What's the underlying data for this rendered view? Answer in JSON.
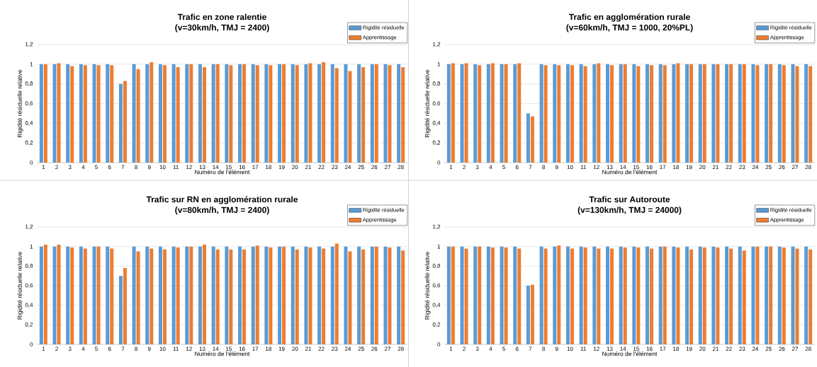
{
  "chart_data": [
    {
      "type": "bar",
      "title": "Trafic en zone ralentie",
      "subtitle": "(v=30km/h, TMJ = 2400)",
      "xlabel": "Numéro de l'élément",
      "ylabel": "Rigidité résiduelle relative",
      "categories": [
        "1",
        "2",
        "3",
        "4",
        "5",
        "6",
        "7",
        "8",
        "9",
        "10",
        "11",
        "12",
        "13",
        "14",
        "15",
        "16",
        "17",
        "18",
        "19",
        "20",
        "21",
        "22",
        "23",
        "24",
        "25",
        "26",
        "27",
        "28"
      ],
      "series": [
        {
          "name": "Rigidité résiduelle",
          "color": "#5b9bd5",
          "values": [
            1,
            1,
            1,
            1,
            1,
            1,
            0.8,
            1,
            1,
            1,
            1,
            1,
            1,
            1,
            1,
            1,
            1,
            1,
            1,
            1,
            1,
            1,
            1,
            1,
            1,
            1,
            1,
            1
          ]
        },
        {
          "name": "Apprentissage",
          "color": "#ed7d31",
          "values": [
            1,
            1.01,
            0.98,
            0.99,
            0.99,
            0.99,
            0.83,
            0.95,
            1.02,
            0.99,
            0.97,
            1,
            0.97,
            1,
            0.99,
            1,
            0.99,
            0.99,
            1,
            0.99,
            1.01,
            1.02,
            0.96,
            0.93,
            0.97,
            1,
            0.99,
            0.97
          ]
        }
      ],
      "ylim": [
        0,
        1.2
      ],
      "yticks": [
        0,
        {
          "value": 0.2,
          "label": "0,2"
        },
        {
          "value": 0.4,
          "label": "0,4"
        },
        {
          "value": 0.6,
          "label": "0,6"
        },
        {
          "value": 0.8,
          "label": "0,8"
        },
        1,
        {
          "value": 1.2,
          "label": "1,2"
        }
      ],
      "grid": "y",
      "legend": "top right"
    },
    {
      "type": "bar",
      "title": "Trafic en agglomération rurale",
      "subtitle": "(v=60km/h, TMJ = 1000, 20%PL)",
      "xlabel": "Numéro de l'élément",
      "ylabel": "Rigidité résiduelle relative",
      "categories": [
        "1",
        "2",
        "3",
        "4",
        "5",
        "6",
        "7",
        "8",
        "9",
        "10",
        "11",
        "12",
        "13",
        "14",
        "15",
        "16",
        "17",
        "18",
        "19",
        "20",
        "21",
        "22",
        "23",
        "24",
        "25",
        "26",
        "27",
        "28"
      ],
      "series": [
        {
          "name": "Rigidité résiduelle",
          "color": "#5b9bd5",
          "values": [
            1,
            1,
            1,
            1,
            1,
            1,
            0.5,
            1,
            1,
            1,
            1,
            1,
            1,
            1,
            1,
            1,
            1,
            1,
            1,
            1,
            1,
            1,
            1,
            1,
            1,
            1,
            1,
            1
          ]
        },
        {
          "name": "Apprentissage",
          "color": "#ed7d31",
          "values": [
            1.01,
            1.01,
            0.99,
            1.01,
            1,
            1.01,
            0.47,
            0.99,
            0.99,
            0.99,
            0.98,
            1.01,
            0.99,
            1,
            0.98,
            0.99,
            0.99,
            1.01,
            1,
            1,
            1,
            1,
            1,
            0.99,
            1,
            0.99,
            0.98,
            0.98
          ]
        }
      ],
      "ylim": [
        0,
        1.2
      ],
      "yticks": [
        0,
        {
          "value": 0.2,
          "label": "0,2"
        },
        {
          "value": 0.4,
          "label": "0,4"
        },
        {
          "value": 0.6,
          "label": "0,6"
        },
        {
          "value": 0.8,
          "label": "0,8"
        },
        1,
        {
          "value": 1.2,
          "label": "1,2"
        }
      ],
      "grid": "y",
      "legend": "top right"
    },
    {
      "type": "bar",
      "title": "Trafic sur RN en agglomération rurale",
      "subtitle": "(v=80km/h, TMJ = 2400)",
      "xlabel": "Numéro de l'élément",
      "ylabel": "Rigidité résiduelle relative",
      "categories": [
        "1",
        "2",
        "3",
        "4",
        "5",
        "6",
        "7",
        "8",
        "9",
        "10",
        "11",
        "12",
        "13",
        "14",
        "15",
        "16",
        "17",
        "18",
        "19",
        "20",
        "21",
        "22",
        "23",
        "24",
        "25",
        "26",
        "27",
        "28"
      ],
      "series": [
        {
          "name": "Rigidité résiduelle",
          "color": "#5b9bd5",
          "values": [
            1,
            1,
            1,
            1,
            1,
            1,
            0.7,
            1,
            1,
            1,
            1,
            1,
            1,
            1,
            1,
            1,
            1,
            1,
            1,
            1,
            1,
            1,
            1,
            1,
            1,
            1,
            1,
            1
          ]
        },
        {
          "name": "Apprentissage",
          "color": "#ed7d31",
          "values": [
            1.02,
            1.02,
            0.99,
            0.98,
            1,
            0.98,
            0.78,
            0.95,
            0.98,
            0.97,
            0.99,
            1,
            1.02,
            0.97,
            0.97,
            0.97,
            1.01,
            0.99,
            1,
            0.97,
            0.99,
            0.98,
            1.03,
            0.95,
            0.97,
            1,
            0.99,
            0.96
          ]
        }
      ],
      "ylim": [
        0,
        1.2
      ],
      "yticks": [
        0,
        {
          "value": 0.2,
          "label": "0,2"
        },
        {
          "value": 0.4,
          "label": "0,4"
        },
        {
          "value": 0.6,
          "label": "0,6"
        },
        {
          "value": 0.8,
          "label": "0,8"
        },
        1,
        {
          "value": 1.2,
          "label": "1,2"
        }
      ],
      "grid": "y",
      "legend": "top right"
    },
    {
      "type": "bar",
      "title": "Trafic sur Autoroute",
      "subtitle": "(v=130km/h, TMJ = 24000)",
      "xlabel": "Numéro de l'élément",
      "ylabel": "Rigidité résiduelle relative",
      "categories": [
        "1",
        "2",
        "3",
        "4",
        "5",
        "6",
        "7",
        "8",
        "9",
        "10",
        "11",
        "12",
        "13",
        "14",
        "15",
        "16",
        "17",
        "18",
        "19",
        "20",
        "21",
        "22",
        "23",
        "24",
        "25",
        "26",
        "27",
        "28"
      ],
      "series": [
        {
          "name": "Rigidité résiduelle",
          "color": "#5b9bd5",
          "values": [
            1,
            1,
            1,
            1,
            1,
            1,
            0.6,
            1,
            1,
            1,
            1,
            1,
            1,
            1,
            1,
            1,
            1,
            1,
            1,
            1,
            1,
            1,
            1,
            1,
            1,
            1,
            1,
            1
          ]
        },
        {
          "name": "Apprentissage",
          "color": "#ed7d31",
          "values": [
            1,
            0.98,
            1,
            0.99,
            0.99,
            0.98,
            0.61,
            0.98,
            1.01,
            0.98,
            0.99,
            0.98,
            0.98,
            0.99,
            0.99,
            0.98,
            1,
            0.99,
            0.97,
            0.99,
            0.99,
            0.98,
            0.96,
            1,
            1,
            0.99,
            0.98,
            0.97
          ]
        }
      ],
      "ylim": [
        0,
        1.2
      ],
      "yticks": [
        0,
        {
          "value": 0.2,
          "label": "0,2"
        },
        {
          "value": 0.4,
          "label": "0,4"
        },
        {
          "value": 0.6,
          "label": "0,6"
        },
        {
          "value": 0.8,
          "label": "0,8"
        },
        1,
        {
          "value": 1.2,
          "label": "1,2"
        }
      ],
      "grid": "y",
      "legend": "top right"
    }
  ]
}
